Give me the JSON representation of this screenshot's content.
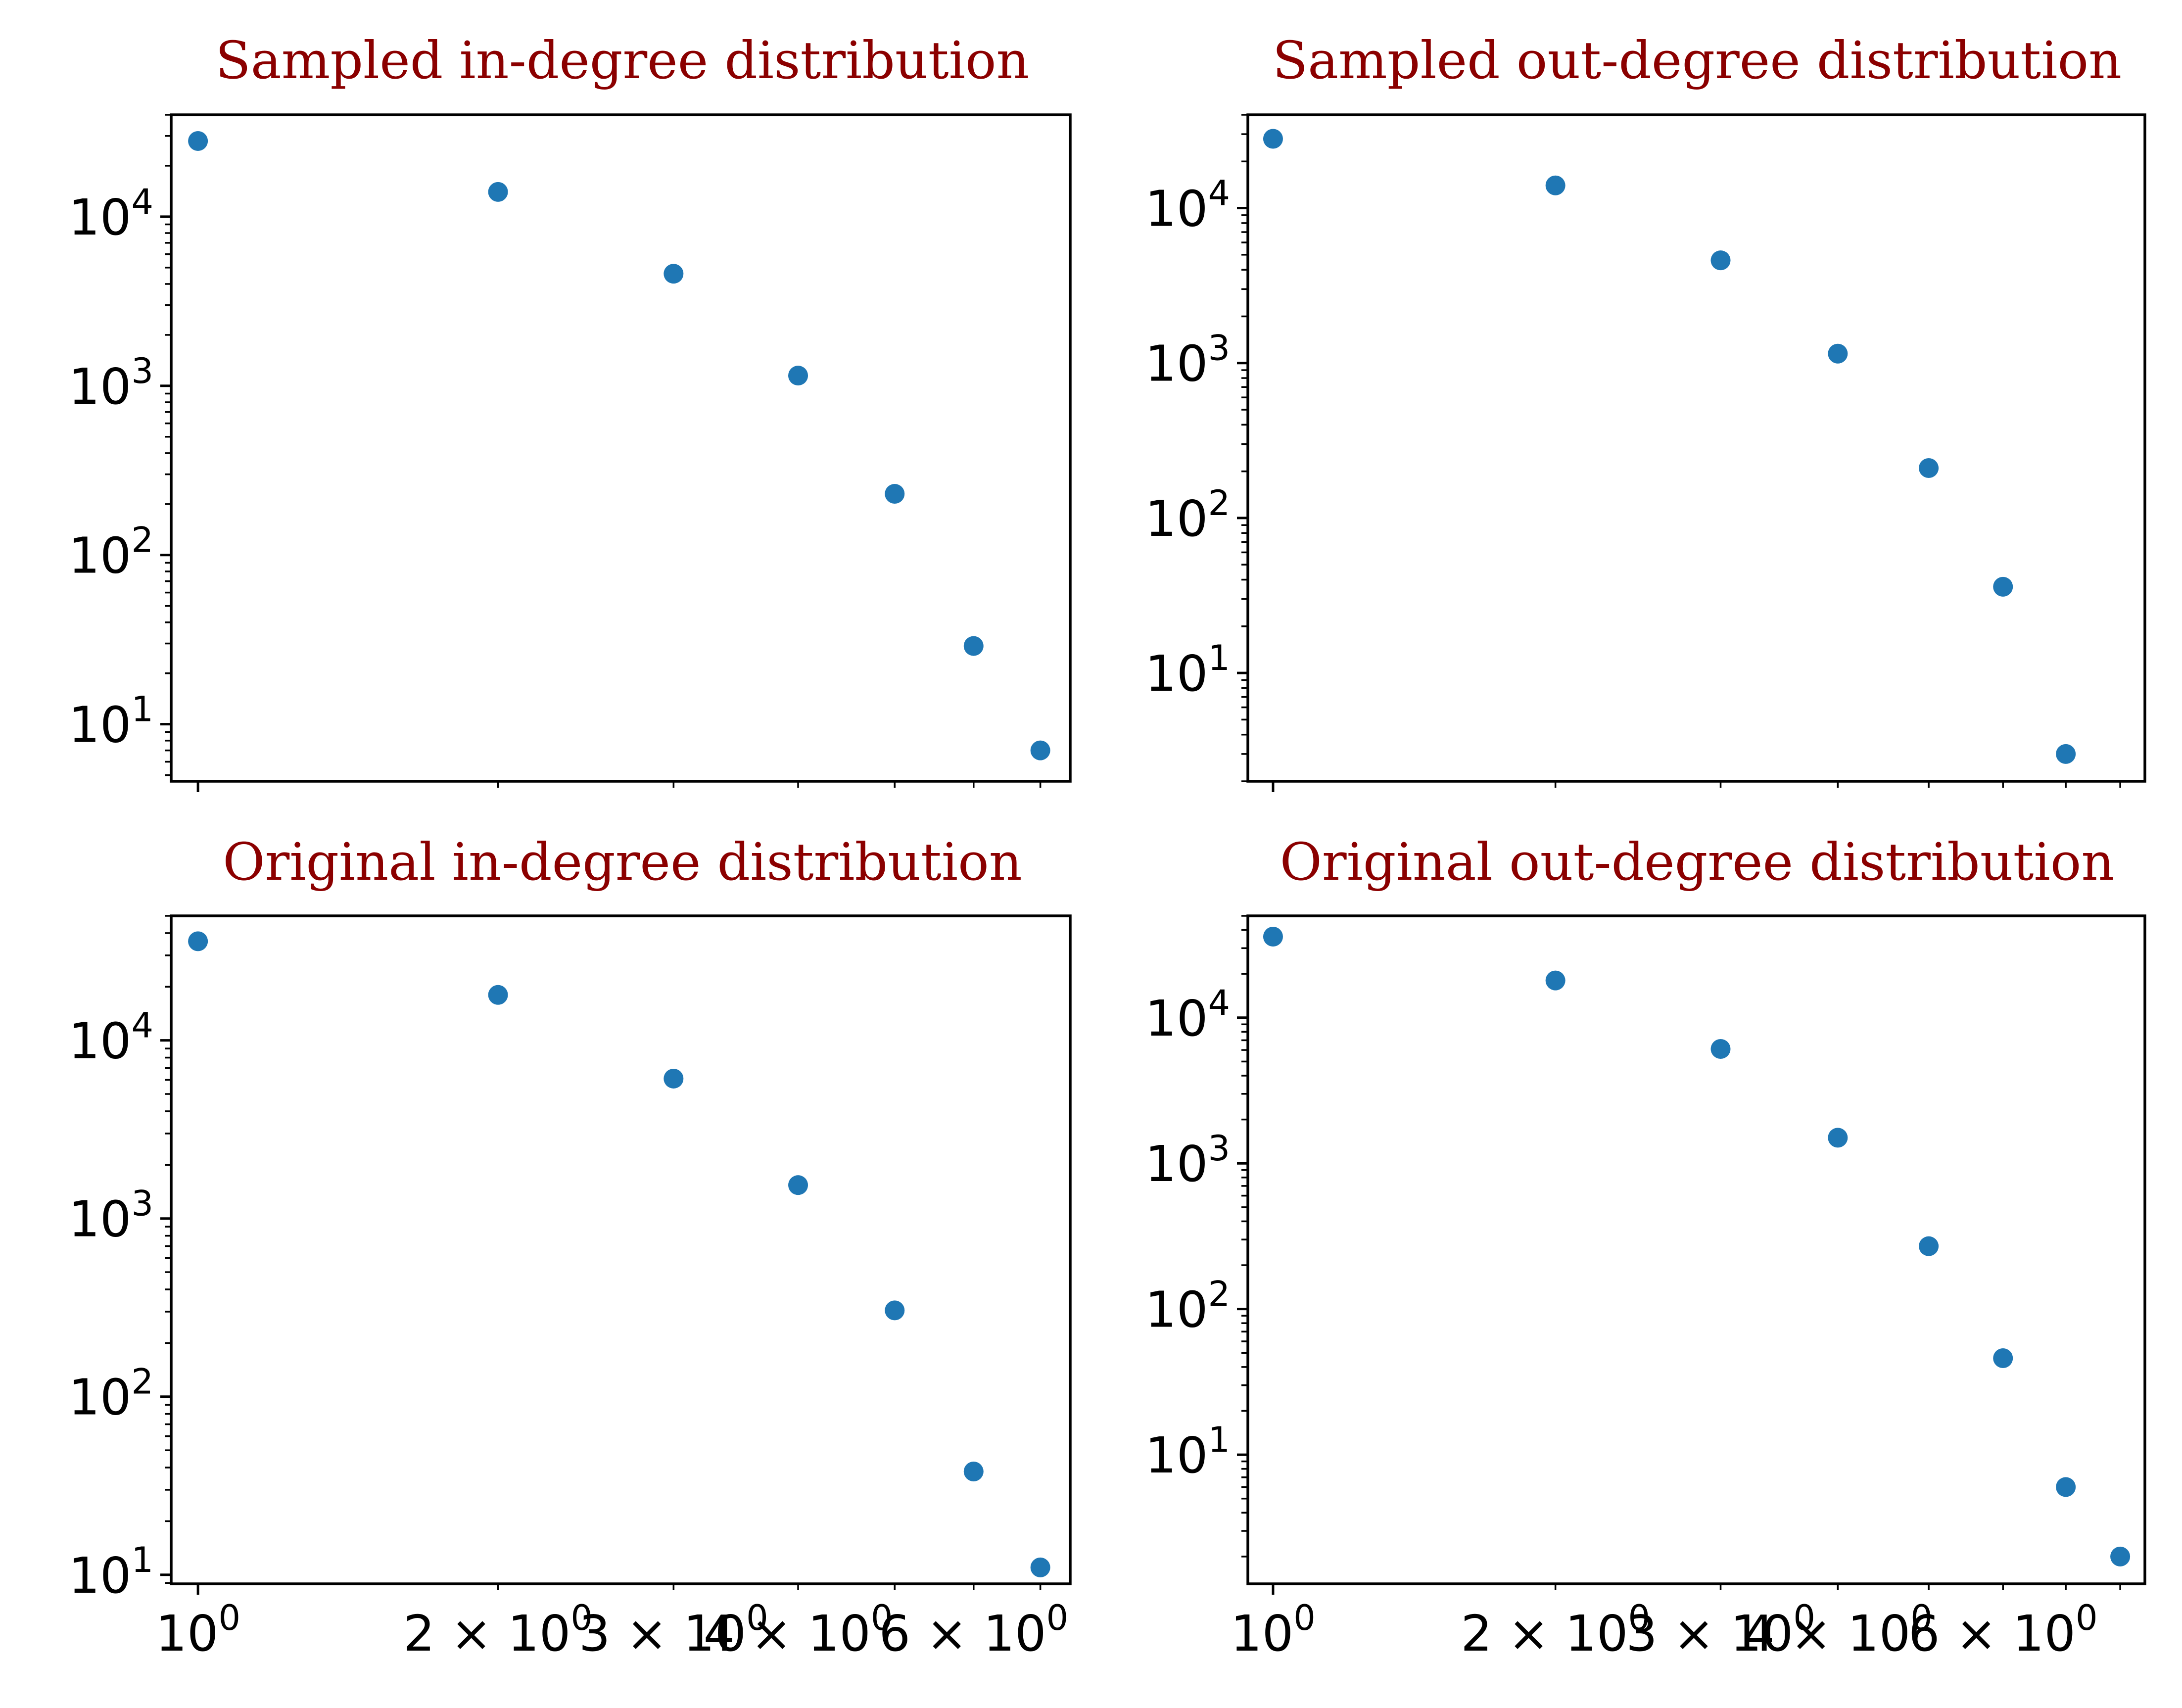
{
  "chart_data": [
    {
      "type": "scatter",
      "title": "Sampled in-degree distribution",
      "xscale": "log",
      "yscale": "log",
      "xlim": [
        0.94,
        7.5
      ],
      "ylim": [
        4.6,
        40000
      ],
      "x": [
        1,
        2,
        3,
        4,
        5,
        6,
        7
      ],
      "y": [
        28000,
        14000,
        4600,
        1150,
        230,
        29,
        7
      ],
      "yticks": [
        {
          "value": 10,
          "exp": "1"
        },
        {
          "value": 100,
          "exp": "2"
        },
        {
          "value": 1000,
          "exp": "3"
        },
        {
          "value": 10000,
          "exp": "4"
        }
      ],
      "xticks": [],
      "marker_color": "#1f77b4",
      "grid": false
    },
    {
      "type": "scatter",
      "title": "Sampled out-degree distribution",
      "xscale": "log",
      "yscale": "log",
      "xlim": [
        0.94,
        8.5
      ],
      "ylim": [
        2,
        40000
      ],
      "x": [
        1,
        2,
        3,
        4,
        5,
        6,
        7
      ],
      "y": [
        28000,
        14000,
        4600,
        1150,
        210,
        36,
        3
      ],
      "yticks": [
        {
          "value": 10,
          "exp": "1"
        },
        {
          "value": 100,
          "exp": "2"
        },
        {
          "value": 1000,
          "exp": "3"
        },
        {
          "value": 10000,
          "exp": "4"
        }
      ],
      "xticks": [],
      "marker_color": "#1f77b4",
      "grid": false
    },
    {
      "type": "scatter",
      "title": "Original in-degree distribution",
      "xscale": "log",
      "yscale": "log",
      "xlim": [
        0.94,
        7.5
      ],
      "ylim": [
        8.9,
        50000
      ],
      "x": [
        1,
        2,
        3,
        4,
        5,
        6,
        7
      ],
      "y": [
        36000,
        18000,
        6100,
        1540,
        305,
        38,
        11
      ],
      "yticks": [
        {
          "value": 10,
          "exp": "1"
        },
        {
          "value": 100,
          "exp": "2"
        },
        {
          "value": 1000,
          "exp": "3"
        },
        {
          "value": 10000,
          "exp": "4"
        }
      ],
      "xticks": [
        {
          "value": 1,
          "label": "10",
          "exp": "0"
        },
        {
          "value": 2,
          "label": "2 × 10",
          "exp": "0"
        },
        {
          "value": 3,
          "label": "3 × 10",
          "exp": "0"
        },
        {
          "value": 4,
          "label": "4 × 10",
          "exp": "0"
        },
        {
          "value": 6,
          "label": "6 × 10",
          "exp": "0"
        }
      ],
      "marker_color": "#1f77b4",
      "grid": false
    },
    {
      "type": "scatter",
      "title": "Original out-degree distribution",
      "xscale": "log",
      "yscale": "log",
      "xlim": [
        0.94,
        8.5
      ],
      "ylim": [
        1.3,
        50000
      ],
      "x": [
        1,
        2,
        3,
        4,
        5,
        6,
        7,
        8
      ],
      "y": [
        36000,
        18000,
        6100,
        1500,
        270,
        46,
        6,
        2
      ],
      "yticks": [
        {
          "value": 10,
          "exp": "1"
        },
        {
          "value": 100,
          "exp": "2"
        },
        {
          "value": 1000,
          "exp": "3"
        },
        {
          "value": 10000,
          "exp": "4"
        }
      ],
      "xticks": [
        {
          "value": 1,
          "label": "10",
          "exp": "0"
        },
        {
          "value": 2,
          "label": "2 × 10",
          "exp": "0"
        },
        {
          "value": 3,
          "label": "3 × 10",
          "exp": "0"
        },
        {
          "value": 4,
          "label": "4 × 10",
          "exp": "0"
        },
        {
          "value": 6,
          "label": "6 × 10",
          "exp": "0"
        }
      ],
      "marker_color": "#1f77b4",
      "grid": false
    }
  ]
}
